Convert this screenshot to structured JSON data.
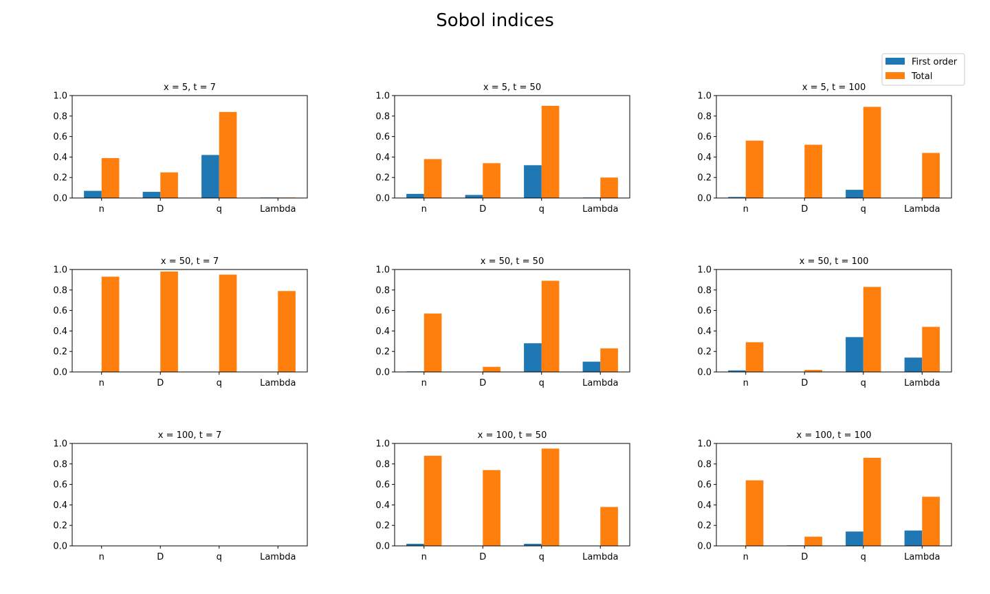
{
  "figure": {
    "title": "Sobol indices"
  },
  "legend": {
    "placement": "top-right",
    "entries": [
      {
        "label": "First order",
        "color": "#1f77b4"
      },
      {
        "label": "Total",
        "color": "#ff7f0e"
      }
    ]
  },
  "chart_data": [
    {
      "type": "bar",
      "title": "x = 5, t = 7",
      "categories": [
        "n",
        "D",
        "q",
        "Lambda"
      ],
      "ylim": [
        0,
        1
      ],
      "yticks": [
        "0.0",
        "0.2",
        "0.4",
        "0.6",
        "0.8",
        "1.0"
      ],
      "series": [
        {
          "name": "First order",
          "values": [
            0.07,
            0.06,
            0.42,
            0.005
          ]
        },
        {
          "name": "Total",
          "values": [
            0.39,
            0.25,
            0.84,
            0.005
          ]
        }
      ]
    },
    {
      "type": "bar",
      "title": "x = 5, t = 50",
      "categories": [
        "n",
        "D",
        "q",
        "Lambda"
      ],
      "ylim": [
        0,
        1
      ],
      "yticks": [
        "0.0",
        "0.2",
        "0.4",
        "0.6",
        "0.8",
        "1.0"
      ],
      "series": [
        {
          "name": "First order",
          "values": [
            0.04,
            0.03,
            0.32,
            0.005
          ]
        },
        {
          "name": "Total",
          "values": [
            0.38,
            0.34,
            0.9,
            0.2
          ]
        }
      ]
    },
    {
      "type": "bar",
      "title": "x = 5, t = 100",
      "categories": [
        "n",
        "D",
        "q",
        "Lambda"
      ],
      "ylim": [
        0,
        1
      ],
      "yticks": [
        "0.0",
        "0.2",
        "0.4",
        "0.6",
        "0.8",
        "1.0"
      ],
      "series": [
        {
          "name": "First order",
          "values": [
            0.01,
            0.0,
            0.08,
            0.0
          ]
        },
        {
          "name": "Total",
          "values": [
            0.56,
            0.52,
            0.89,
            0.44
          ]
        }
      ]
    },
    {
      "type": "bar",
      "title": "x = 50, t = 7",
      "categories": [
        "n",
        "D",
        "q",
        "Lambda"
      ],
      "ylim": [
        0,
        1
      ],
      "yticks": [
        "0.0",
        "0.2",
        "0.4",
        "0.6",
        "0.8",
        "1.0"
      ],
      "series": [
        {
          "name": "First order",
          "values": [
            0.0,
            0.0,
            0.0,
            0.0
          ]
        },
        {
          "name": "Total",
          "values": [
            0.93,
            0.98,
            0.95,
            0.79
          ]
        }
      ]
    },
    {
      "type": "bar",
      "title": "x = 50, t = 50",
      "categories": [
        "n",
        "D",
        "q",
        "Lambda"
      ],
      "ylim": [
        0,
        1
      ],
      "yticks": [
        "0.0",
        "0.2",
        "0.4",
        "0.6",
        "0.8",
        "1.0"
      ],
      "series": [
        {
          "name": "First order",
          "values": [
            0.005,
            0.0,
            0.28,
            0.1
          ]
        },
        {
          "name": "Total",
          "values": [
            0.57,
            0.05,
            0.89,
            0.23
          ]
        }
      ]
    },
    {
      "type": "bar",
      "title": "x = 50, t = 100",
      "categories": [
        "n",
        "D",
        "q",
        "Lambda"
      ],
      "ylim": [
        0,
        1
      ],
      "yticks": [
        "0.0",
        "0.2",
        "0.4",
        "0.6",
        "0.8",
        "1.0"
      ],
      "series": [
        {
          "name": "First order",
          "values": [
            0.015,
            0.0,
            0.34,
            0.14
          ]
        },
        {
          "name": "Total",
          "values": [
            0.29,
            0.02,
            0.83,
            0.44
          ]
        }
      ]
    },
    {
      "type": "bar",
      "title": "x = 100, t = 7",
      "categories": [
        "n",
        "D",
        "q",
        "Lambda"
      ],
      "ylim": [
        0,
        1
      ],
      "yticks": [
        "0.0",
        "0.2",
        "0.4",
        "0.6",
        "0.8",
        "1.0"
      ],
      "series": [
        {
          "name": "First order",
          "values": [
            0.0,
            0.0,
            0.0,
            0.0
          ]
        },
        {
          "name": "Total",
          "values": [
            0.0,
            0.0,
            0.0,
            0.0
          ]
        }
      ]
    },
    {
      "type": "bar",
      "title": "x = 100, t = 50",
      "categories": [
        "n",
        "D",
        "q",
        "Lambda"
      ],
      "ylim": [
        0,
        1
      ],
      "yticks": [
        "0.0",
        "0.2",
        "0.4",
        "0.6",
        "0.8",
        "1.0"
      ],
      "series": [
        {
          "name": "First order",
          "values": [
            0.02,
            0.0,
            0.02,
            0.0
          ]
        },
        {
          "name": "Total",
          "values": [
            0.88,
            0.74,
            0.95,
            0.38
          ]
        }
      ]
    },
    {
      "type": "bar",
      "title": "x = 100, t = 100",
      "categories": [
        "n",
        "D",
        "q",
        "Lambda"
      ],
      "ylim": [
        0,
        1
      ],
      "yticks": [
        "0.0",
        "0.2",
        "0.4",
        "0.6",
        "0.8",
        "1.0"
      ],
      "series": [
        {
          "name": "First order",
          "values": [
            0.0,
            0.005,
            0.14,
            0.15
          ]
        },
        {
          "name": "Total",
          "values": [
            0.64,
            0.09,
            0.86,
            0.48
          ]
        }
      ]
    }
  ]
}
